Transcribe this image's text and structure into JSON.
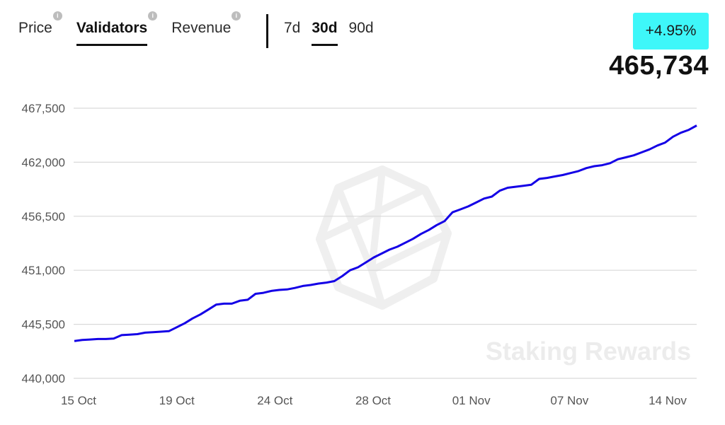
{
  "tabs": [
    {
      "label": "Price",
      "active": false
    },
    {
      "label": "Validators",
      "active": true
    },
    {
      "label": "Revenue",
      "active": false
    }
  ],
  "ranges": [
    {
      "label": "7d",
      "active": false
    },
    {
      "label": "30d",
      "active": true
    },
    {
      "label": "90d",
      "active": false
    }
  ],
  "change_badge": "+4.95%",
  "current_value": "465,734",
  "watermark": "Staking Rewards",
  "colors": {
    "line": "#1400e6",
    "badge": "#3ef7f9",
    "grid": "#d9d9d9"
  },
  "chart_data": {
    "type": "line",
    "title": "",
    "xlabel": "",
    "ylabel": "",
    "ylim": [
      440000,
      470000
    ],
    "y_ticks": [
      440000,
      445500,
      451000,
      456500,
      462000,
      467500
    ],
    "y_tick_labels": [
      "440,000",
      "445,500",
      "451,000",
      "456,500",
      "462,000",
      "467,500"
    ],
    "x_ticks": [
      "15 Oct",
      "19 Oct",
      "24 Oct",
      "28 Oct",
      "01 Nov",
      "07 Nov",
      "14 Nov"
    ],
    "grid": true,
    "series": [
      {
        "values": [
          443800,
          443900,
          443950,
          444000,
          444000,
          444050,
          444400,
          444450,
          444500,
          444650,
          444700,
          444750,
          444800,
          445200,
          445600,
          446100,
          446500,
          447000,
          447500,
          447600,
          447600,
          447900,
          448000,
          448600,
          448700,
          448900,
          449000,
          449050,
          449200,
          449400,
          449500,
          449650,
          449750,
          449900,
          450400,
          451000,
          451300,
          451800,
          452300,
          452700,
          453100,
          453400,
          453800,
          454200,
          454700,
          455100,
          455600,
          456000,
          456900,
          457200,
          457500,
          457900,
          458300,
          458500,
          459100,
          459400,
          459500,
          459600,
          459700,
          460300,
          460400,
          460550,
          460700,
          460900,
          461100,
          461400,
          461600,
          461700,
          461900,
          462300,
          462500,
          462700,
          463000,
          463300,
          463700,
          464000,
          464600,
          465000,
          465300,
          465734
        ]
      }
    ]
  }
}
